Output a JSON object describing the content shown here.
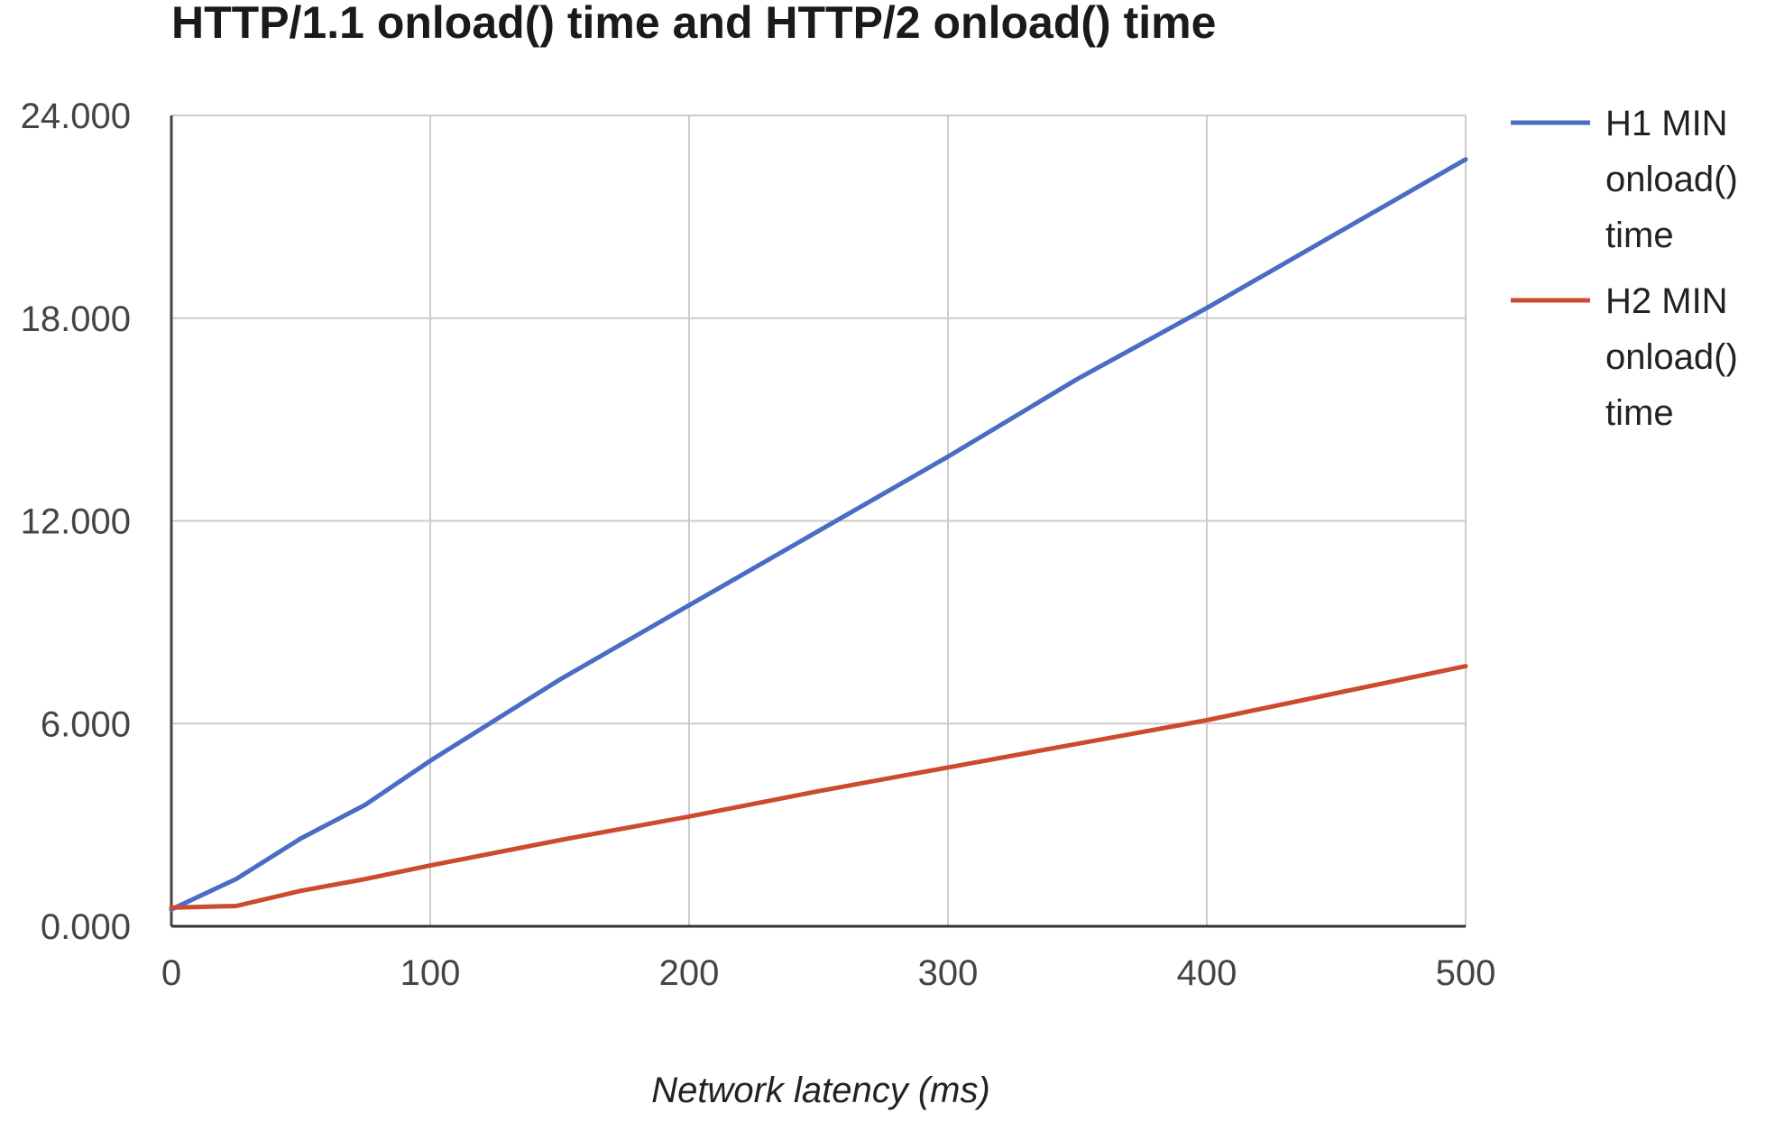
{
  "chart_data": {
    "type": "line",
    "title": "HTTP/1.1 onload() time and HTTP/2 onload() time",
    "xlabel": "Network latency (ms)",
    "ylabel": "",
    "xlim": [
      0,
      500
    ],
    "ylim": [
      0,
      24
    ],
    "x_ticks": [
      "0",
      "100",
      "200",
      "300",
      "400",
      "500"
    ],
    "y_ticks": [
      "0.000",
      "6.000",
      "12.000",
      "18.000",
      "24.000"
    ],
    "grid": true,
    "legend_position": "right",
    "x": [
      0,
      25,
      50,
      75,
      100,
      150,
      200,
      250,
      300,
      350,
      400,
      450,
      500
    ],
    "series": [
      {
        "name": "H1 MIN onload() time",
        "legend_lines": [
          "H1 MIN",
          "onload()",
          "time"
        ],
        "color": "#4a6cc4",
        "values": [
          0.5,
          1.4,
          2.6,
          3.6,
          4.9,
          7.3,
          9.5,
          11.7,
          13.9,
          16.2,
          18.3,
          20.5,
          22.7
        ]
      },
      {
        "name": "H2 MIN onload() time",
        "legend_lines": [
          "H2 MIN",
          "onload()",
          "time"
        ],
        "color": "#cc4a2f",
        "values": [
          0.55,
          0.6,
          1.05,
          1.4,
          1.8,
          2.55,
          3.25,
          4.0,
          4.7,
          5.4,
          6.1,
          6.9,
          7.7
        ]
      }
    ]
  }
}
